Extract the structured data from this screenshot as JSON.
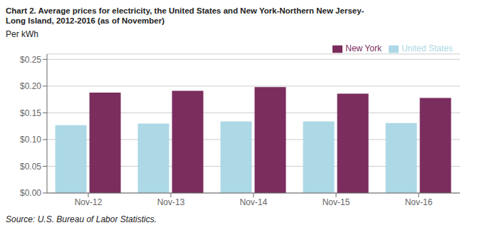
{
  "chart_data": {
    "type": "bar",
    "title": "Chart 2. Average prices for electricity, the United States and New York-Northern New Jersey-\nLong Island, 2012-2016 (as of November)",
    "ylabel": "Per kWh",
    "annotations": [
      "Source: U.S. Bureau of Labor Statistics."
    ],
    "categories": [
      "Nov-12",
      "Nov-13",
      "Nov-14",
      "Nov-15",
      "Nov-16"
    ],
    "series": [
      {
        "name": "United States",
        "color": "#ADD8E6",
        "values": [
          0.127,
          0.13,
          0.134,
          0.134,
          0.131
        ]
      },
      {
        "name": "New York",
        "color": "#7B2D5E",
        "values": [
          0.188,
          0.191,
          0.198,
          0.186,
          0.178
        ]
      }
    ],
    "ylim": [
      0.0,
      0.26
    ],
    "yticks": [
      {
        "value": 0.0,
        "label": "$0.00"
      },
      {
        "value": 0.05,
        "label": "$0.05"
      },
      {
        "value": 0.1,
        "label": "$0.10"
      },
      {
        "value": 0.15,
        "label": "$0.15"
      },
      {
        "value": 0.2,
        "label": "$0.20"
      },
      {
        "value": 0.25,
        "label": "$0.25"
      }
    ],
    "grid": true,
    "legend": "upper right"
  }
}
